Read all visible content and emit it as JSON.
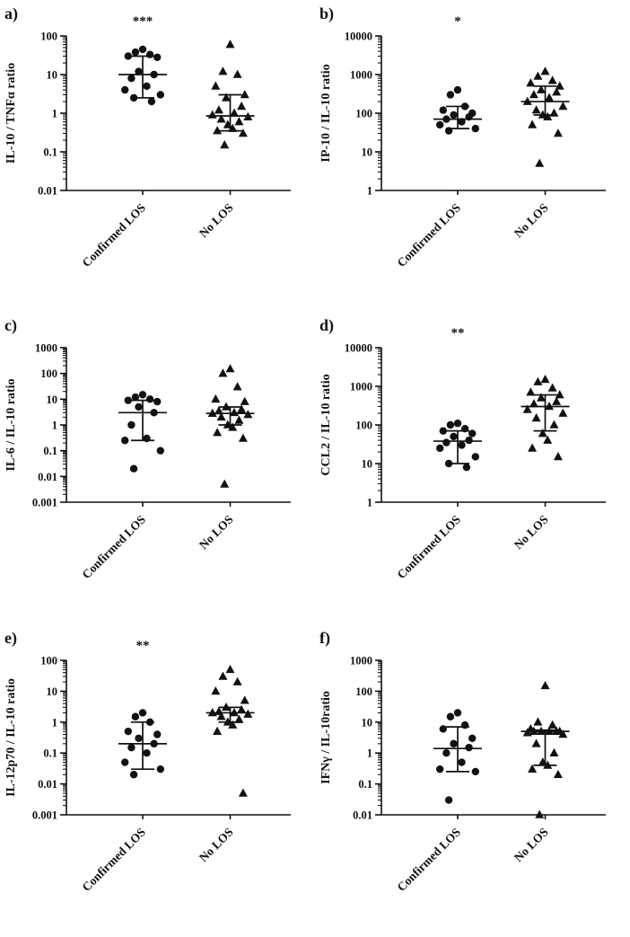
{
  "figure": {
    "categories": [
      "Confirmed LOS",
      "No LOS"
    ],
    "marker_color": "#111111",
    "axis_color": "#111111"
  },
  "chart_data": [
    {
      "type": "scatter",
      "panel_label": "a)",
      "ylabel": "IL-10 / TNFα ratio",
      "significance": "***",
      "y_axis": {
        "scale": "log",
        "min": 0.01,
        "max": 100,
        "ticks": [
          0.01,
          0.1,
          1,
          10,
          100
        ]
      },
      "categories": [
        "Confirmed LOS",
        "No LOS"
      ],
      "series": [
        {
          "name": "Confirmed LOS",
          "marker": "circle",
          "values": [
            45,
            38,
            33,
            30,
            28,
            12,
            10,
            8,
            5,
            4,
            3,
            2.5,
            2
          ],
          "median": 10,
          "iqr": [
            2.5,
            30
          ]
        },
        {
          "name": "No LOS",
          "marker": "triangle",
          "values": [
            60,
            12,
            10,
            5,
            3,
            2.5,
            1.5,
            1.2,
            1.0,
            0.9,
            0.8,
            0.7,
            0.6,
            0.5,
            0.4,
            0.35,
            0.3,
            0.15
          ],
          "median": 0.85,
          "iqr": [
            0.35,
            3
          ]
        }
      ]
    },
    {
      "type": "scatter",
      "panel_label": "b)",
      "ylabel": "IP-10 / IL-10 ratio",
      "significance": "*",
      "y_axis": {
        "scale": "log",
        "min": 1,
        "max": 10000,
        "ticks": [
          1,
          10,
          100,
          1000,
          10000
        ]
      },
      "categories": [
        "Confirmed LOS",
        "No LOS"
      ],
      "series": [
        {
          "name": "Confirmed LOS",
          "marker": "circle",
          "values": [
            400,
            300,
            150,
            120,
            100,
            90,
            80,
            70,
            60,
            50,
            40,
            35
          ],
          "median": 70,
          "iqr": [
            40,
            150
          ]
        },
        {
          "name": "No LOS",
          "marker": "triangle",
          "values": [
            1200,
            900,
            700,
            600,
            500,
            400,
            350,
            300,
            250,
            200,
            150,
            120,
            100,
            90,
            80,
            50,
            30,
            5
          ],
          "median": 200,
          "iqr": [
            90,
            500
          ]
        }
      ]
    },
    {
      "type": "scatter",
      "panel_label": "c)",
      "ylabel": "IL-6 / IL-10 ratio",
      "significance": "",
      "y_axis": {
        "scale": "log",
        "min": 0.001,
        "max": 1000,
        "ticks": [
          0.001,
          0.01,
          0.1,
          1,
          10,
          100,
          1000
        ]
      },
      "categories": [
        "Confirmed LOS",
        "No LOS"
      ],
      "series": [
        {
          "name": "Confirmed LOS",
          "marker": "circle",
          "values": [
            15,
            12,
            10,
            9,
            8,
            5,
            3,
            1,
            0.3,
            0.25,
            0.1,
            0.02
          ],
          "median": 3,
          "iqr": [
            0.25,
            9
          ]
        },
        {
          "name": "No LOS",
          "marker": "triangle",
          "values": [
            150,
            100,
            30,
            10,
            8,
            5,
            4,
            3.5,
            3,
            2.8,
            2.5,
            2,
            1.5,
            1,
            0.8,
            0.5,
            0.3,
            0.005
          ],
          "median": 2.8,
          "iqr": [
            1,
            5
          ]
        }
      ]
    },
    {
      "type": "scatter",
      "panel_label": "d)",
      "ylabel": "CCL2 / IL-10 ratio",
      "significance": "**",
      "y_axis": {
        "scale": "log",
        "min": 1,
        "max": 10000,
        "ticks": [
          1,
          10,
          100,
          1000,
          10000
        ]
      },
      "categories": [
        "Confirmed LOS",
        "No LOS"
      ],
      "series": [
        {
          "name": "Confirmed LOS",
          "marker": "circle",
          "values": [
            110,
            100,
            80,
            70,
            60,
            50,
            40,
            35,
            30,
            25,
            15,
            10,
            8
          ],
          "median": 38,
          "iqr": [
            10,
            70
          ]
        },
        {
          "name": "No LOS",
          "marker": "triangle",
          "values": [
            1500,
            1300,
            900,
            700,
            600,
            500,
            400,
            350,
            300,
            250,
            200,
            150,
            100,
            60,
            40,
            25,
            15
          ],
          "median": 300,
          "iqr": [
            70,
            600
          ]
        }
      ]
    },
    {
      "type": "scatter",
      "panel_label": "e)",
      "ylabel": "IL-12p70 / IL-10 ratio",
      "significance": "**",
      "y_axis": {
        "scale": "log",
        "min": 0.001,
        "max": 100,
        "ticks": [
          0.001,
          0.01,
          0.1,
          1,
          10,
          100
        ]
      },
      "categories": [
        "Confirmed LOS",
        "No LOS"
      ],
      "series": [
        {
          "name": "Confirmed LOS",
          "marker": "circle",
          "values": [
            2,
            1.5,
            1,
            0.5,
            0.4,
            0.3,
            0.2,
            0.15,
            0.1,
            0.05,
            0.03,
            0.02
          ],
          "median": 0.2,
          "iqr": [
            0.03,
            1
          ]
        },
        {
          "name": "No LOS",
          "marker": "triangle",
          "values": [
            50,
            30,
            20,
            10,
            5,
            3,
            2.5,
            2.2,
            2,
            2,
            1.8,
            1.5,
            1.2,
            1,
            0.8,
            0.5,
            0.005
          ],
          "median": 2,
          "iqr": [
            1,
            3
          ]
        }
      ]
    },
    {
      "type": "scatter",
      "panel_label": "f)",
      "ylabel": "IFNγ / IL-10ratio",
      "significance": "",
      "y_axis": {
        "scale": "log",
        "min": 0.01,
        "max": 1000,
        "ticks": [
          0.01,
          0.1,
          1,
          10,
          100,
          1000
        ]
      },
      "categories": [
        "Confirmed LOS",
        "No LOS"
      ],
      "series": [
        {
          "name": "Confirmed LOS",
          "marker": "circle",
          "values": [
            20,
            15,
            8,
            6,
            3,
            2,
            1.5,
            1,
            0.5,
            0.3,
            0.25,
            0.03
          ],
          "median": 1.4,
          "iqr": [
            0.25,
            7
          ]
        },
        {
          "name": "No LOS",
          "marker": "triangle",
          "values": [
            150,
            10,
            8,
            6,
            5,
            5,
            5,
            5,
            5,
            4.5,
            4,
            2,
            1,
            0.5,
            0.4,
            0.3,
            0.2,
            0.01
          ],
          "median": 5,
          "iqr": [
            0.4,
            5.5
          ]
        }
      ]
    }
  ]
}
